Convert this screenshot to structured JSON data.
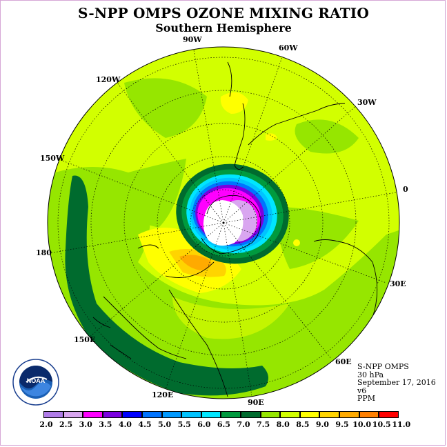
{
  "title": "S-NPP OMPS OZONE MIXING RATIO",
  "subtitle": "Southern Hemisphere",
  "longitude_labels": [
    "90W",
    "60W",
    "120W",
    "30W",
    "150W",
    "0",
    "180",
    "30E",
    "150E",
    "60E",
    "120E",
    "90E"
  ],
  "logo": {
    "name": "NOAA",
    "ring_text": "NATIONAL OCEANIC AND ATMOSPHERIC ADMINISTRATION · U.S. DEPARTMENT OF COMMERCE"
  },
  "info": {
    "instrument": "S-NPP OMPS",
    "level": "30 hPa",
    "date": "September 17, 2016",
    "version": "v6",
    "units": "PPM"
  },
  "colorbar": {
    "ticks": [
      "2.0",
      "2.5",
      "3.0",
      "3.5",
      "4.0",
      "4.5",
      "5.0",
      "5.5",
      "6.0",
      "6.5",
      "7.0",
      "7.5",
      "8.0",
      "8.5",
      "9.0",
      "9.5",
      "10.0",
      "10.5",
      "11.0"
    ],
    "colors": [
      "#b07ce8",
      "#d9a6f0",
      "#ff00ff",
      "#7b00e0",
      "#0000ff",
      "#0073ff",
      "#0099ff",
      "#00c3ff",
      "#00e6ff",
      "#009a3e",
      "#006b2e",
      "#96e600",
      "#d2ff00",
      "#ffff00",
      "#ffd400",
      "#ffaa00",
      "#ff7f00",
      "#ff0000",
      "#8b4513"
    ]
  }
}
